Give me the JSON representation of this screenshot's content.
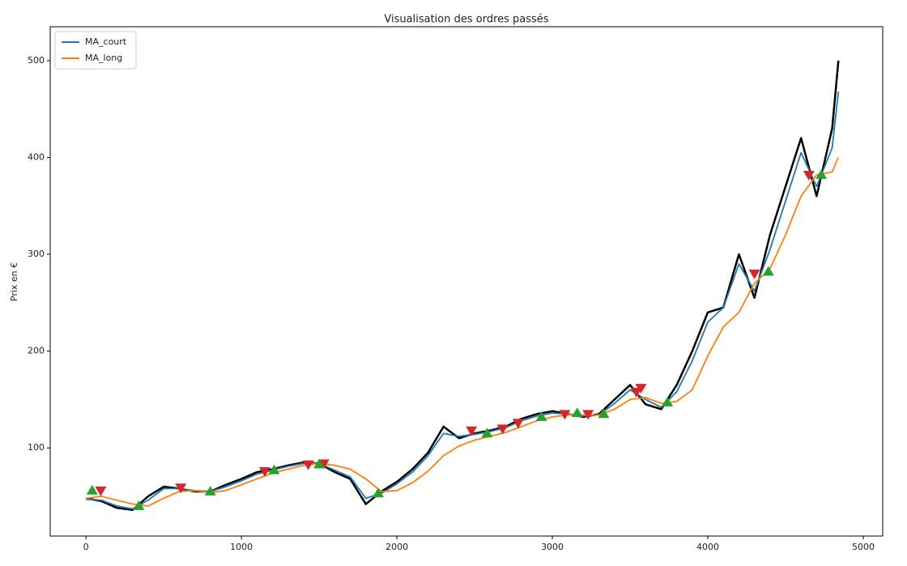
{
  "chart_data": {
    "type": "line",
    "title": "Visualisation des ordres passés",
    "y_label": "Prix en €",
    "xlim": [
      -230,
      5125
    ],
    "ylim": [
      9,
      535
    ],
    "xticks": [
      0,
      1000,
      2000,
      3000,
      4000,
      5000
    ],
    "yticks": [
      100,
      200,
      300,
      400,
      500
    ],
    "legend": "upper left",
    "series": [
      {
        "type": "line",
        "color": "#000000",
        "width": 2.5,
        "x": [
          0,
          100,
          200,
          300,
          400,
          500,
          600,
          700,
          800,
          900,
          1000,
          1100,
          1200,
          1300,
          1400,
          1500,
          1600,
          1700,
          1800,
          1900,
          2000,
          2100,
          2200,
          2300,
          2400,
          2500,
          2600,
          2700,
          2800,
          2900,
          3000,
          3100,
          3200,
          3300,
          3400,
          3500,
          3600,
          3700,
          3800,
          3900,
          4000,
          4100,
          4200,
          4300,
          4400,
          4500,
          4600,
          4700,
          4800,
          4840
        ],
        "values": [
          48,
          45,
          38,
          36,
          50,
          60,
          58,
          55,
          55,
          62,
          68,
          75,
          78,
          82,
          85,
          84,
          75,
          68,
          42,
          55,
          65,
          78,
          95,
          122,
          110,
          115,
          118,
          122,
          130,
          135,
          138,
          135,
          132,
          135,
          150,
          165,
          145,
          140,
          165,
          200,
          240,
          245,
          300,
          255,
          320,
          370,
          420,
          360,
          430,
          500
        ]
      },
      {
        "type": "line",
        "name": "MA_court",
        "color": "#1f77b4",
        "width": 1.8,
        "x": [
          0,
          100,
          200,
          300,
          400,
          500,
          600,
          700,
          800,
          900,
          1000,
          1100,
          1200,
          1300,
          1400,
          1500,
          1600,
          1700,
          1800,
          1900,
          2000,
          2100,
          2200,
          2300,
          2400,
          2500,
          2600,
          2700,
          2800,
          2900,
          3000,
          3100,
          3200,
          3300,
          3400,
          3500,
          3600,
          3700,
          3800,
          3900,
          4000,
          4100,
          4200,
          4300,
          4400,
          4500,
          4600,
          4700,
          4800,
          4840
        ],
        "values": [
          47,
          46,
          40,
          37,
          46,
          58,
          58,
          56,
          55,
          60,
          66,
          73,
          77,
          81,
          84,
          84,
          77,
          70,
          48,
          53,
          63,
          75,
          92,
          115,
          112,
          114,
          117,
          121,
          128,
          133,
          136,
          135,
          133,
          134,
          146,
          160,
          150,
          142,
          158,
          190,
          230,
          245,
          290,
          262,
          305,
          355,
          405,
          370,
          410,
          468
        ]
      },
      {
        "type": "line",
        "name": "MA_long",
        "color": "#ff7f0e",
        "width": 1.8,
        "x": [
          0,
          100,
          200,
          300,
          400,
          500,
          600,
          700,
          800,
          900,
          1000,
          1100,
          1200,
          1300,
          1400,
          1500,
          1600,
          1700,
          1800,
          1900,
          2000,
          2100,
          2200,
          2300,
          2400,
          2500,
          2600,
          2700,
          2800,
          2900,
          3000,
          3100,
          3200,
          3300,
          3400,
          3500,
          3600,
          3700,
          3800,
          3900,
          4000,
          4100,
          4200,
          4300,
          4400,
          4500,
          4600,
          4700,
          4800,
          4840
        ],
        "values": [
          48,
          50,
          46,
          42,
          40,
          48,
          55,
          56,
          54,
          56,
          62,
          68,
          74,
          78,
          82,
          84,
          82,
          78,
          68,
          55,
          56,
          64,
          76,
          92,
          102,
          108,
          112,
          116,
          122,
          128,
          132,
          134,
          134,
          134,
          140,
          150,
          152,
          146,
          148,
          160,
          195,
          225,
          240,
          270,
          285,
          320,
          360,
          382,
          385,
          400
        ]
      },
      {
        "type": "scatter",
        "marker": "v",
        "color": "#d62728",
        "x": [
          95,
          610,
          1150,
          1430,
          1530,
          2480,
          2680,
          2780,
          3080,
          3230,
          3540,
          3570,
          4300,
          4650
        ],
        "values": [
          56,
          59,
          76,
          83,
          84,
          118,
          120,
          126,
          135,
          135,
          158,
          162,
          280,
          382
        ]
      },
      {
        "type": "scatter",
        "marker": "^",
        "color": "#2ca02c",
        "x": [
          40,
          340,
          800,
          1210,
          1500,
          1880,
          2580,
          2930,
          3160,
          3330,
          3740,
          4390,
          4730
        ],
        "values": [
          56,
          40,
          55,
          77,
          83,
          53,
          115,
          132,
          136,
          135,
          147,
          282,
          382
        ]
      }
    ]
  }
}
